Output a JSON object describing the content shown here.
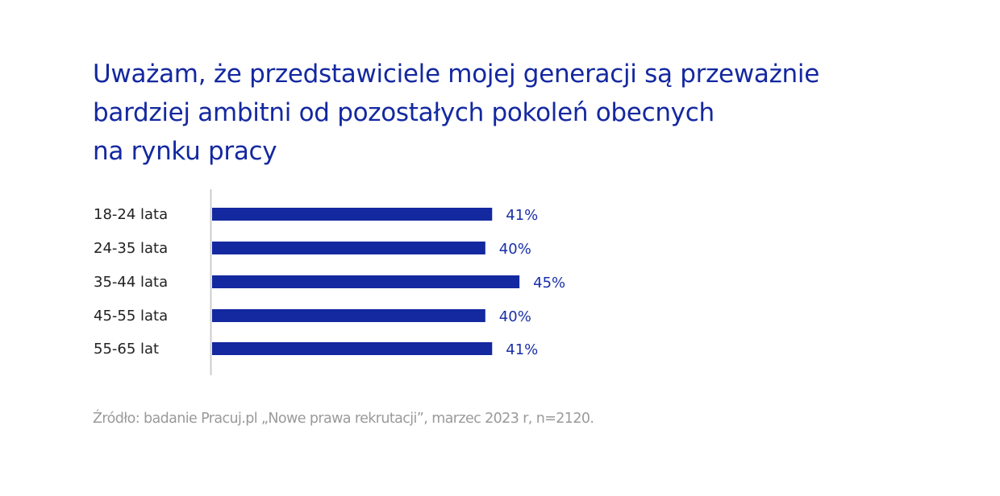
{
  "chart_data": {
    "type": "bar",
    "orientation": "horizontal",
    "title_lines": [
      "Uważam, że przedstawiciele mojej generacji są przeważnie",
      "bardziej ambitni od pozostałych pokoleń obecnych",
      "na rynku pracy"
    ],
    "categories": [
      "18-24 lata",
      "24-35 lata",
      "35-44 lata",
      "45-55 lata",
      "55-65 lat"
    ],
    "values": [
      41,
      40,
      45,
      40,
      41
    ],
    "value_labels": [
      "41%",
      "40%",
      "45%",
      "40%",
      "41%"
    ],
    "unit": "%",
    "xlabel": "",
    "ylabel": "",
    "grid": false,
    "legend": null,
    "bar_color": "#1428a0",
    "label_color": "#1a2fa8",
    "axis_color": "#cccccc"
  },
  "source": "Źródło: badanie Pracuj.pl „Nowe prawa rekrutacji”, marzec 2023 r, n=2120."
}
